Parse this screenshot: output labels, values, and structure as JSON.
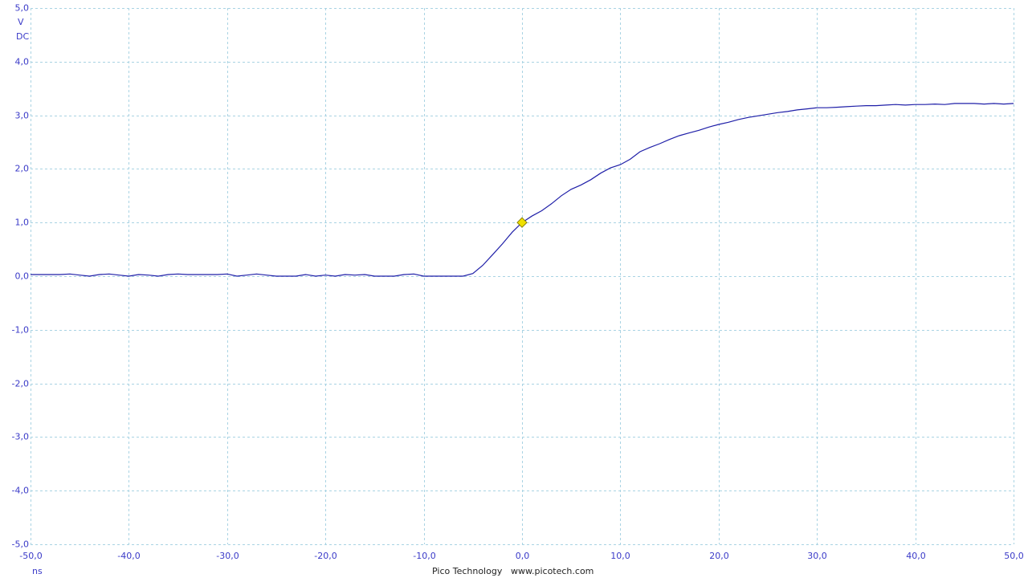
{
  "chart_data": {
    "type": "line",
    "y_unit": "V",
    "coupling": "DC",
    "x_unit": "ns",
    "footer": [
      "Pico Technology",
      "www.picotech.com"
    ],
    "x": [
      -50,
      -49,
      -48,
      -47,
      -46,
      -45,
      -44,
      -43,
      -42,
      -41,
      -40,
      -39,
      -38,
      -37,
      -36,
      -35,
      -34,
      -33,
      -32,
      -31,
      -30,
      -29,
      -28,
      -27,
      -26,
      -25,
      -24,
      -23,
      -22,
      -21,
      -20,
      -19,
      -18,
      -17,
      -16,
      -15,
      -14,
      -13,
      -12,
      -11,
      -10,
      -9,
      -8,
      -7,
      -6,
      -5,
      -4,
      -3,
      -2,
      -1,
      0,
      1,
      2,
      3,
      4,
      5,
      6,
      7,
      8,
      9,
      10,
      11,
      12,
      13,
      14,
      15,
      16,
      17,
      18,
      19,
      20,
      21,
      22,
      23,
      24,
      25,
      26,
      27,
      28,
      29,
      30,
      31,
      32,
      33,
      34,
      35,
      36,
      37,
      38,
      39,
      40,
      41,
      42,
      43,
      44,
      45,
      46,
      47,
      48,
      49,
      50
    ],
    "series": [
      {
        "color": "#1f1fa8",
        "values": [
          0.03,
          0.03,
          0.03,
          0.03,
          0.04,
          0.02,
          0.0,
          0.03,
          0.04,
          0.02,
          0.0,
          0.03,
          0.02,
          0.0,
          0.03,
          0.04,
          0.03,
          0.03,
          0.03,
          0.03,
          0.04,
          0.0,
          0.02,
          0.04,
          0.02,
          0.0,
          0.0,
          0.0,
          0.03,
          0.0,
          0.02,
          0.0,
          0.03,
          0.02,
          0.03,
          0.0,
          0.0,
          0.0,
          0.03,
          0.04,
          0.0,
          0.0,
          0.0,
          0.0,
          0.0,
          0.05,
          0.2,
          0.4,
          0.6,
          0.82,
          1.0,
          1.12,
          1.22,
          1.35,
          1.5,
          1.62,
          1.7,
          1.8,
          1.92,
          2.02,
          2.08,
          2.18,
          2.32,
          2.4,
          2.47,
          2.55,
          2.62,
          2.67,
          2.72,
          2.78,
          2.83,
          2.87,
          2.92,
          2.96,
          2.99,
          3.02,
          3.05,
          3.07,
          3.1,
          3.12,
          3.14,
          3.14,
          3.15,
          3.16,
          3.17,
          3.18,
          3.18,
          3.19,
          3.2,
          3.19,
          3.2,
          3.2,
          3.21,
          3.2,
          3.22,
          3.22,
          3.22,
          3.21,
          3.22,
          3.21,
          3.22
        ]
      }
    ],
    "trigger": {
      "x": 0,
      "y": 1.0,
      "color": "#f0e000"
    },
    "xlim": [
      -50,
      50
    ],
    "xticks": [
      {
        "value": -50,
        "label": "-50,0"
      },
      {
        "value": -40,
        "label": "-40,0"
      },
      {
        "value": -30,
        "label": "-30,0"
      },
      {
        "value": -20,
        "label": "-20,0"
      },
      {
        "value": -10,
        "label": "-10,0"
      },
      {
        "value": 0,
        "label": "0,0"
      },
      {
        "value": 10,
        "label": "10,0"
      },
      {
        "value": 20,
        "label": "20,0"
      },
      {
        "value": 30,
        "label": "30,0"
      },
      {
        "value": 40,
        "label": "40,0"
      },
      {
        "value": 50,
        "label": "50,0"
      }
    ],
    "ylim": [
      -5,
      5
    ],
    "yticks": [
      {
        "value": 5,
        "label": "5,0"
      },
      {
        "value": 4,
        "label": "4,0"
      },
      {
        "value": 3,
        "label": "3,0"
      },
      {
        "value": 2,
        "label": "2,0"
      },
      {
        "value": 1,
        "label": "1,0"
      },
      {
        "value": 0,
        "label": "0,0"
      },
      {
        "value": -1,
        "label": "-1,0"
      },
      {
        "value": -2,
        "label": "-2,0"
      },
      {
        "value": -3,
        "label": "-3,0"
      },
      {
        "value": -4,
        "label": "-4,0"
      },
      {
        "value": -5,
        "label": "-5,0"
      }
    ],
    "grid": true
  }
}
